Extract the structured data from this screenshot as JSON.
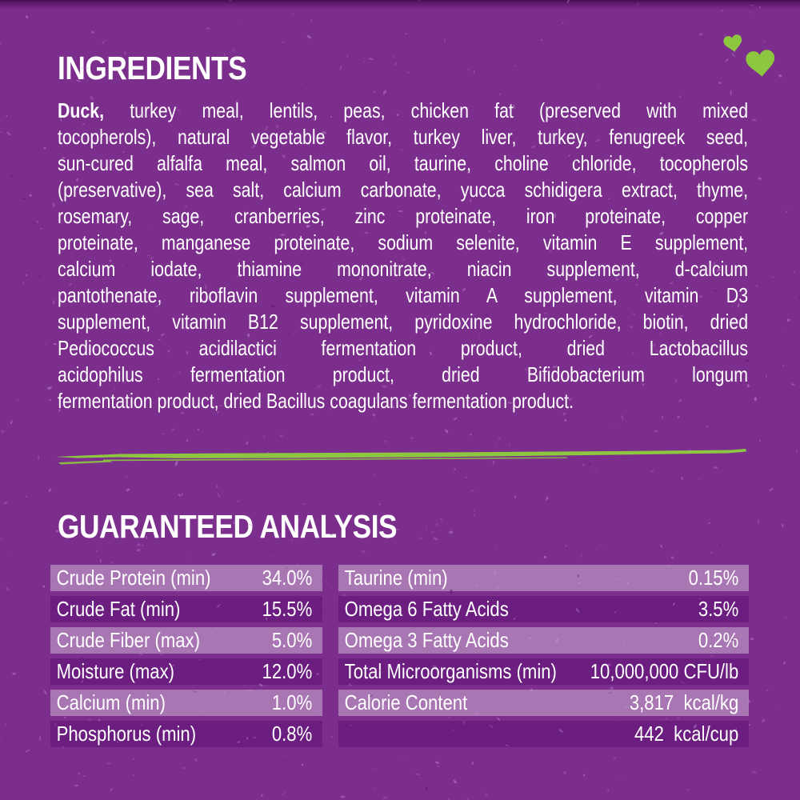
{
  "colors": {
    "background": "#7c2e8c",
    "row_light": "#a976b4",
    "row_dark": "#6b1d80",
    "accent_green": "#8dc63f",
    "text": "#ffffff",
    "speckle_light": "#c792d6",
    "speckle_dark": "#59126b"
  },
  "icons": {
    "hearts": [
      "heart-icon",
      "heart-icon"
    ],
    "divider": "brush-stroke-divider"
  },
  "ingredients": {
    "title": "INGREDIENTS",
    "lead": "Duck,",
    "lines": [
      " turkey meal, lentils, peas, chicken fat (preserved with mixed",
      "tocopherols), natural vegetable flavor, turkey liver, turkey, fenugreek seed,",
      "sun-cured alfalfa meal, salmon oil, taurine, choline chloride, tocopherols",
      "(preservative), sea salt, calcium carbonate, yucca schidigera extract, thyme,",
      "rosemary, sage, cranberries, zinc proteinate, iron proteinate, copper",
      "proteinate, manganese proteinate, sodium selenite, vitamin E supplement,",
      "calcium iodate, thiamine mononitrate, niacin supplement, d-calcium",
      "pantothenate, riboflavin supplement, vitamin A supplement, vitamin D3",
      "supplement, vitamin B12 supplement, pyridoxine hydrochloride, biotin, dried",
      "Pediococcus acidilactici fermentation product, dried Lactobacillus",
      "acidophilus fermentation product, dried Bifidobacterium longum",
      "fermentation product, dried Bacillus coagulans fermentation product."
    ]
  },
  "guaranteed_analysis": {
    "title": "GUARANTEED ANALYSIS",
    "left_rows": [
      {
        "label": "Crude Protein (min)",
        "value": "34.0%"
      },
      {
        "label": "Crude Fat (min)",
        "value": "15.5%"
      },
      {
        "label": "Crude Fiber (max)",
        "value": "5.0%"
      },
      {
        "label": "Moisture (max)",
        "value": "12.0%"
      },
      {
        "label": "Calcium (min)",
        "value": "1.0%"
      },
      {
        "label": "Phosphorus (min)",
        "value": "0.8%"
      }
    ],
    "right_rows": [
      {
        "label": "Taurine (min)",
        "value": "0.15%"
      },
      {
        "label": "Omega 6 Fatty Acids",
        "value": "3.5%"
      },
      {
        "label": "Omega 3 Fatty Acids",
        "value": "0.2%"
      },
      {
        "label": "Total Microorganisms (min)",
        "value": "10,000,000 CFU/lb"
      },
      {
        "label": "Calorie Content",
        "value": "3,817  kcal/kg"
      },
      {
        "label": "",
        "value": "442  kcal/cup"
      }
    ]
  }
}
